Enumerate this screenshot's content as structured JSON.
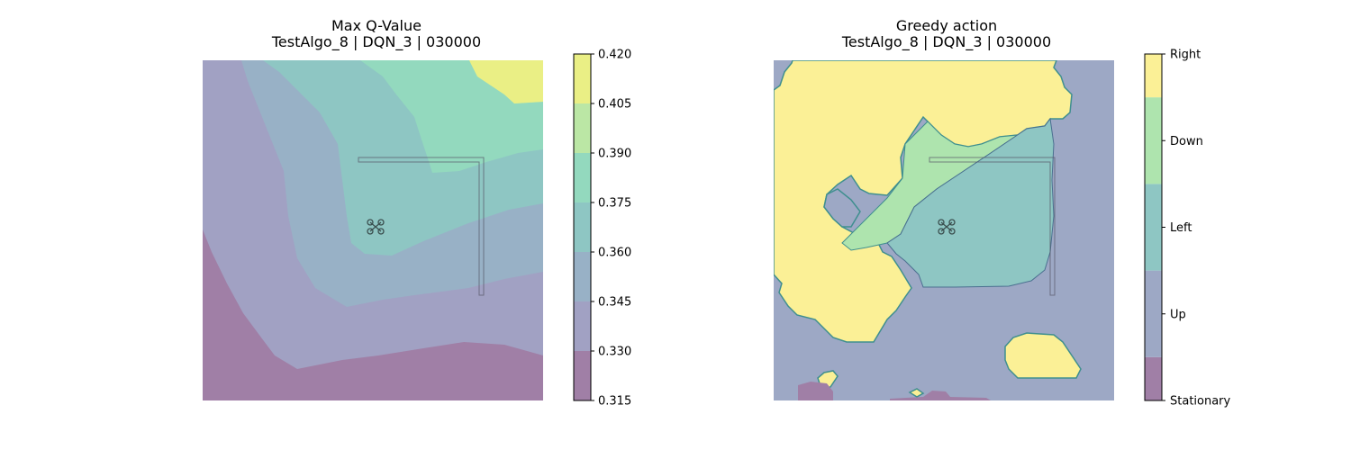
{
  "chart_data": [
    {
      "type": "contour",
      "title_line1": "Max Q-Value",
      "title_line2": "TestAlgo_8 | DQN_3 | 030000",
      "colorbar_ticks": [
        "0.420",
        "0.405",
        "0.390",
        "0.375",
        "0.360",
        "0.345",
        "0.330",
        "0.315"
      ],
      "colorbar_range": [
        0.315,
        0.42
      ],
      "levels": [
        {
          "lo": 0.315,
          "hi": 0.33,
          "color": "#a07fa6"
        },
        {
          "lo": 0.33,
          "hi": 0.345,
          "color": "#a1a1c3"
        },
        {
          "lo": 0.345,
          "hi": 0.36,
          "color": "#98b1c6"
        },
        {
          "lo": 0.36,
          "hi": 0.375,
          "color": "#8ec6c3"
        },
        {
          "lo": 0.375,
          "hi": 0.39,
          "color": "#93d9be"
        },
        {
          "lo": 0.39,
          "hi": 0.405,
          "color": "#bbe7a5"
        },
        {
          "lo": 0.405,
          "hi": 0.42,
          "color": "#eaef85"
        }
      ]
    },
    {
      "type": "heatmap",
      "title_line1": "Greedy action",
      "title_line2": "TestAlgo_8 | DQN_3 | 030000",
      "categories": [
        "Stationary",
        "Up",
        "Left",
        "Down",
        "Right"
      ],
      "colors": [
        "#a07fa6",
        "#9da8c5",
        "#8ec6c3",
        "#aee4ae",
        "#fbf096"
      ]
    }
  ]
}
